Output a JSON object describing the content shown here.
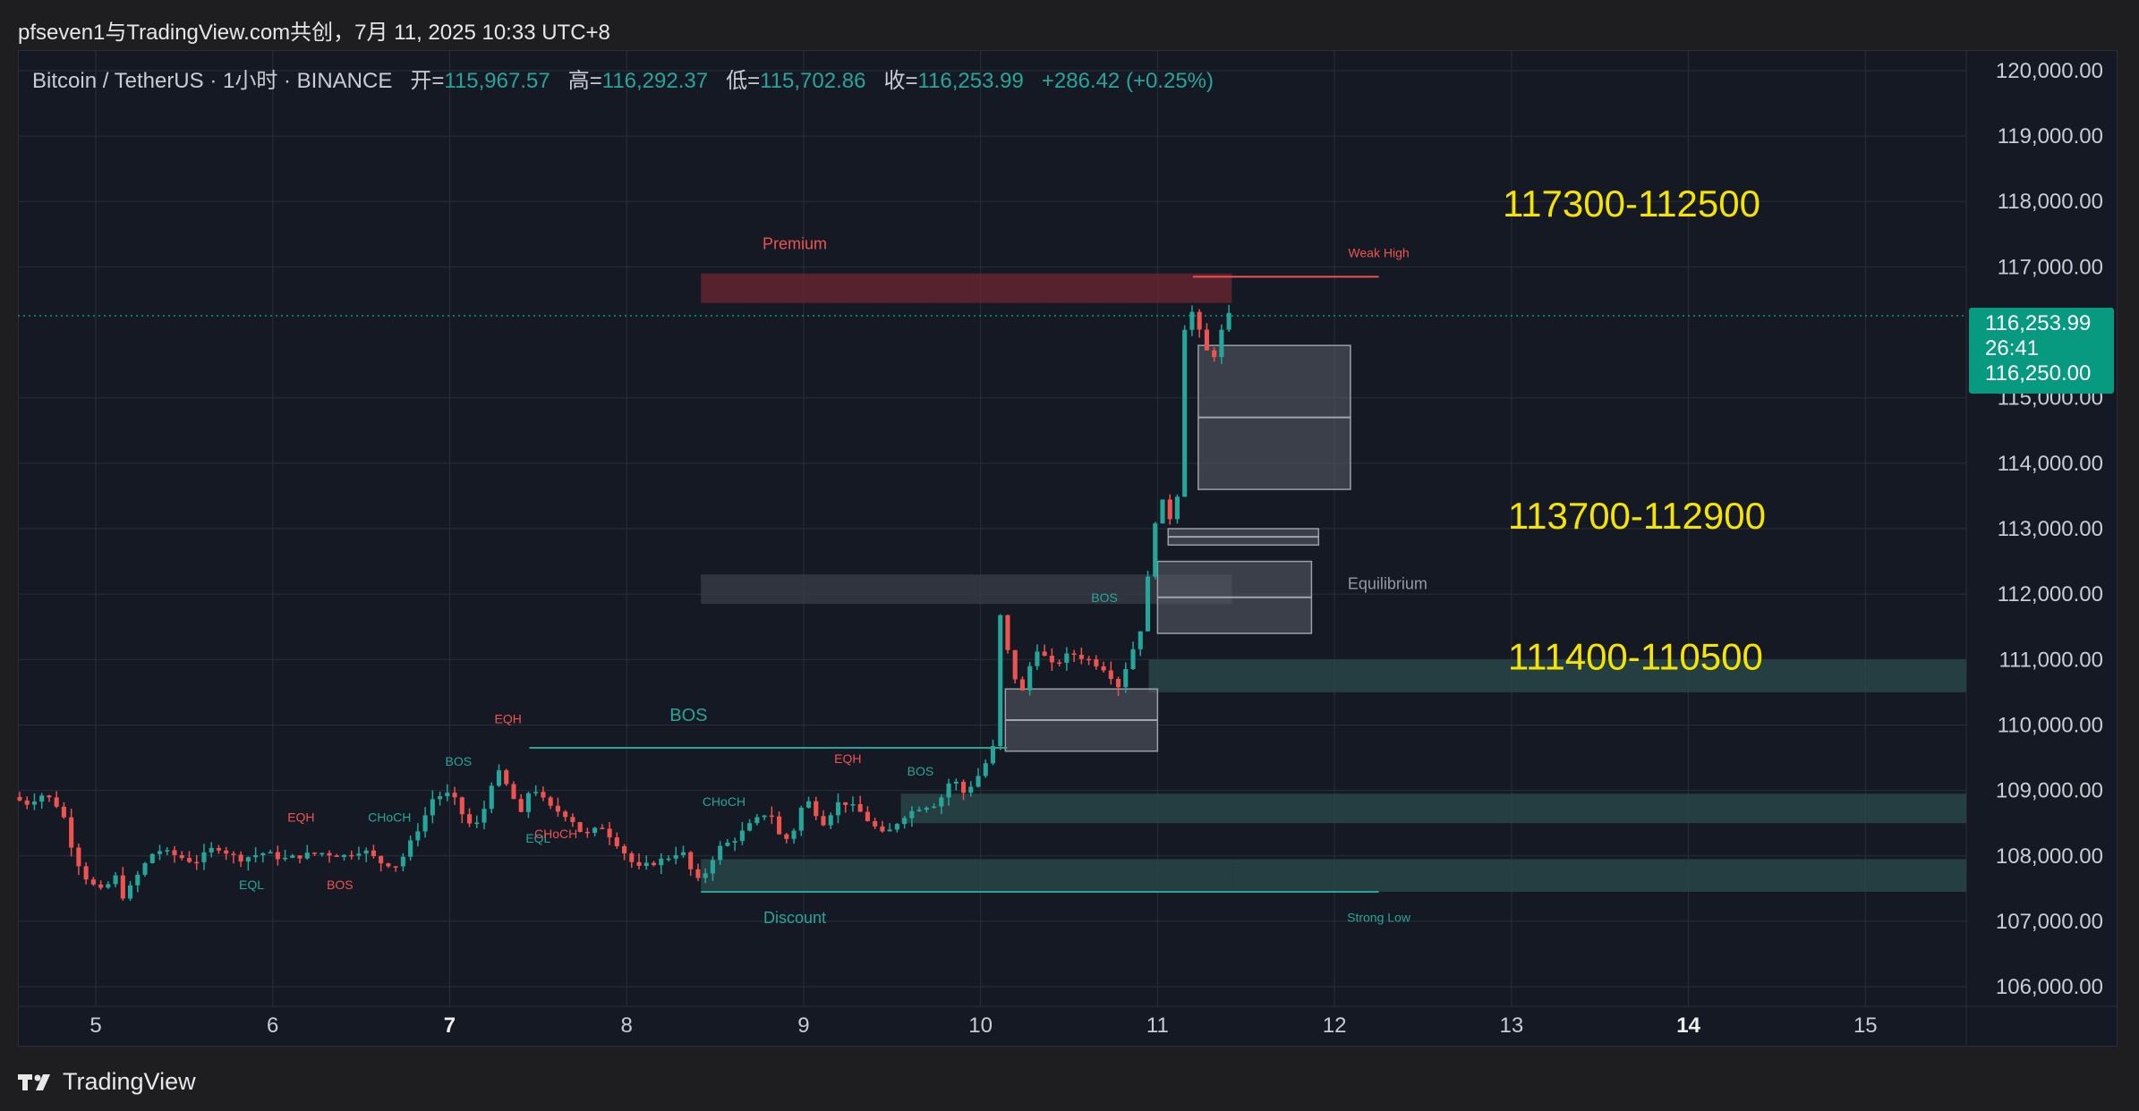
{
  "header": {
    "title": "pfseven1与TradingView.com共创，7月 11, 2025 10:33 UTC+8"
  },
  "legend": {
    "symbol": "Bitcoin / TetherUS · 1小时 · BINANCE",
    "open_label": "开=",
    "open": "115,967.57",
    "high_label": "高=",
    "high": "116,292.37",
    "low_label": "低=",
    "low": "115,702.86",
    "close_label": "收=",
    "close": "116,253.99",
    "change": "+286.42 (+0.25%)"
  },
  "price_tag": {
    "price": "116,253.99",
    "countdown": "26:41",
    "line2": "116,250.00"
  },
  "footer": {
    "brand": "TradingView"
  },
  "colors": {
    "up": "#26a69a",
    "down": "#ef5350",
    "premium_zone": "#6b2530",
    "discount_zone": "#2a4b4b",
    "annotation_yellow": "#f5e300",
    "grid": "#2a2e39"
  },
  "chart_data": {
    "type": "candlestick",
    "symbol": "BTCUSDT",
    "timeframe": "1h",
    "x_axis": {
      "ticks": [
        {
          "day": 5,
          "label": "5",
          "bold": false
        },
        {
          "day": 6,
          "label": "6",
          "bold": false
        },
        {
          "day": 7,
          "label": "7",
          "bold": true
        },
        {
          "day": 8,
          "label": "8",
          "bold": false
        },
        {
          "day": 9,
          "label": "9",
          "bold": false
        },
        {
          "day": 10,
          "label": "10",
          "bold": false
        },
        {
          "day": 11,
          "label": "11",
          "bold": false
        },
        {
          "day": 12,
          "label": "12",
          "bold": false
        },
        {
          "day": 13,
          "label": "13",
          "bold": false
        },
        {
          "day": 14,
          "label": "14",
          "bold": true
        },
        {
          "day": 15,
          "label": "15",
          "bold": false
        }
      ],
      "range": [
        4.56,
        15.57
      ]
    },
    "y_axis": {
      "range": [
        105700,
        120300
      ],
      "ticks": [
        {
          "value": 120000,
          "label": "120,000.00"
        },
        {
          "value": 119000,
          "label": "119,000.00"
        },
        {
          "value": 118000,
          "label": "118,000.00"
        },
        {
          "value": 117000,
          "label": "117,000.00"
        },
        {
          "value": 115000,
          "label": "115,000.00"
        },
        {
          "value": 114000,
          "label": "114,000.00"
        },
        {
          "value": 113000,
          "label": "113,000.00"
        },
        {
          "value": 112000,
          "label": "112,000.00"
        },
        {
          "value": 111000,
          "label": "111,000.00"
        },
        {
          "value": 110000,
          "label": "110,000.00"
        },
        {
          "value": 109000,
          "label": "109,000.00"
        },
        {
          "value": 108000,
          "label": "108,000.00"
        },
        {
          "value": 107000,
          "label": "107,000.00"
        },
        {
          "value": 106000,
          "label": "106,000.00"
        }
      ]
    },
    "current_price": 116253.99,
    "path": [
      [
        4.57,
        108900
      ],
      [
        4.65,
        108800
      ],
      [
        4.75,
        108950
      ],
      [
        4.85,
        108700
      ],
      [
        4.92,
        108000
      ],
      [
        5.0,
        107600
      ],
      [
        5.08,
        107450
      ],
      [
        5.15,
        107700
      ],
      [
        5.2,
        107350
      ],
      [
        5.3,
        107800
      ],
      [
        5.38,
        108100
      ],
      [
        5.5,
        108000
      ],
      [
        5.6,
        107900
      ],
      [
        5.72,
        108150
      ],
      [
        5.85,
        107950
      ],
      [
        6.0,
        108050
      ],
      [
        6.1,
        107950
      ],
      [
        6.2,
        108000
      ],
      [
        6.3,
        108050
      ],
      [
        6.45,
        108000
      ],
      [
        6.55,
        108100
      ],
      [
        6.65,
        107900
      ],
      [
        6.75,
        107850
      ],
      [
        6.82,
        108200
      ],
      [
        6.9,
        108600
      ],
      [
        6.95,
        108900
      ],
      [
        7.05,
        108950
      ],
      [
        7.12,
        108600
      ],
      [
        7.18,
        108400
      ],
      [
        7.25,
        108800
      ],
      [
        7.3,
        109350
      ],
      [
        7.38,
        109000
      ],
      [
        7.45,
        108600
      ],
      [
        7.5,
        109100
      ],
      [
        7.6,
        108750
      ],
      [
        7.72,
        108600
      ],
      [
        7.8,
        108300
      ],
      [
        7.9,
        108450
      ],
      [
        8.0,
        108150
      ],
      [
        8.1,
        107800
      ],
      [
        8.2,
        107900
      ],
      [
        8.3,
        108000
      ],
      [
        8.35,
        108100
      ],
      [
        8.4,
        107800
      ],
      [
        8.45,
        107600
      ],
      [
        8.5,
        107800
      ],
      [
        8.55,
        108100
      ],
      [
        8.65,
        108250
      ],
      [
        8.75,
        108500
      ],
      [
        8.85,
        108700
      ],
      [
        8.92,
        108200
      ],
      [
        8.98,
        108350
      ],
      [
        9.05,
        108900
      ],
      [
        9.15,
        108500
      ],
      [
        9.25,
        108850
      ],
      [
        9.35,
        108700
      ],
      [
        9.42,
        108500
      ],
      [
        9.5,
        108300
      ],
      [
        9.6,
        108600
      ],
      [
        9.7,
        108750
      ],
      [
        9.8,
        108800
      ],
      [
        9.88,
        109200
      ],
      [
        9.95,
        108950
      ],
      [
        10.05,
        109300
      ],
      [
        10.12,
        109700
      ],
      [
        10.15,
        111700
      ],
      [
        10.22,
        110800
      ],
      [
        10.28,
        110500
      ],
      [
        10.35,
        111200
      ],
      [
        10.45,
        110900
      ],
      [
        10.55,
        111100
      ],
      [
        10.65,
        111000
      ],
      [
        10.75,
        110850
      ],
      [
        10.82,
        110600
      ],
      [
        10.88,
        111000
      ],
      [
        10.95,
        111500
      ],
      [
        11.0,
        112500
      ],
      [
        11.05,
        113600
      ],
      [
        11.1,
        113100
      ],
      [
        11.15,
        113400
      ],
      [
        11.18,
        114500
      ],
      [
        11.2,
        116600
      ],
      [
        11.25,
        116200
      ],
      [
        11.3,
        115850
      ],
      [
        11.35,
        115500
      ],
      [
        11.38,
        115900
      ],
      [
        11.42,
        116100
      ],
      [
        11.44,
        116254
      ]
    ],
    "zones": [
      {
        "name": "premium",
        "x0": 8.42,
        "x1": 11.42,
        "y0": 116450,
        "y1": 116900,
        "color": "#6b2530"
      },
      {
        "name": "equilibrium-band",
        "x0": 8.42,
        "x1": 11.42,
        "y0": 111850,
        "y1": 112300,
        "color": "#3a3e48"
      },
      {
        "name": "discount",
        "x0": 8.42,
        "x1": 11.42,
        "y0": 107450,
        "y1": 107950,
        "color": "#2a4b4b"
      },
      {
        "name": "demand-111k",
        "x0": 10.95,
        "x1": 15.57,
        "y0": 110500,
        "y1": 111000,
        "color": "#2a4b4b"
      },
      {
        "name": "demand-109k",
        "x0": 9.55,
        "x1": 15.57,
        "y0": 108500,
        "y1": 108950,
        "color": "#2a4b4b"
      },
      {
        "name": "demand-108k",
        "x0": 11.42,
        "x1": 15.57,
        "y0": 107450,
        "y1": 107950,
        "color": "#2a4b4b"
      },
      {
        "name": "fvg-upper",
        "x0": 11.23,
        "x1": 12.09,
        "y0": 113600,
        "y1": 115800,
        "color": "#5a5e68"
      },
      {
        "name": "fvg-mid",
        "x0": 11.06,
        "x1": 11.91,
        "y0": 112750,
        "y1": 113000,
        "color": "#5a5e68"
      },
      {
        "name": "fvg-lower",
        "x0": 11.0,
        "x1": 11.87,
        "y0": 111400,
        "y1": 112500,
        "color": "#5a5e68"
      },
      {
        "name": "fvg-bottom",
        "x0": 10.14,
        "x1": 11.0,
        "y0": 109600,
        "y1": 110550,
        "color": "#5a5e68"
      }
    ],
    "lines": [
      {
        "name": "weak-high-line",
        "x0": 11.2,
        "x1": 12.25,
        "y": 116850,
        "color": "#ef5350"
      },
      {
        "name": "strong-low-line",
        "x0": 8.42,
        "x1": 12.25,
        "y": 107450,
        "color": "#26a69a"
      },
      {
        "name": "bos-line-main",
        "x0": 7.45,
        "x1": 10.15,
        "y": 109650,
        "color": "#26a69a"
      }
    ],
    "labels": [
      {
        "text": "Premium",
        "x": 8.95,
        "y": 117270,
        "color": "#ef5350",
        "size": 18
      },
      {
        "text": "Discount",
        "x": 8.95,
        "y": 106970,
        "color": "#26a69a",
        "size": 18
      },
      {
        "text": "Equilibrium",
        "x": 12.3,
        "y": 112080,
        "color": "#9598a1",
        "size": 18
      },
      {
        "text": "Weak High",
        "x": 12.25,
        "y": 117150,
        "color": "#ef5350",
        "size": 14
      },
      {
        "text": "Strong Low",
        "x": 12.25,
        "y": 106990,
        "color": "#26a69a",
        "size": 14
      },
      {
        "text": "BOS",
        "x": 8.35,
        "y": 110060,
        "color": "#26a69a",
        "size": 20
      },
      {
        "text": "BOS",
        "x": 10.7,
        "y": 111880,
        "color": "#26a69a",
        "size": 14
      },
      {
        "text": "BOS",
        "x": 7.05,
        "y": 109380,
        "color": "#26a69a",
        "size": 14
      },
      {
        "text": "BOS",
        "x": 9.66,
        "y": 109230,
        "color": "#26a69a",
        "size": 14
      },
      {
        "text": "BOS",
        "x": 6.38,
        "y": 107490,
        "color": "#ef5350",
        "size": 14
      },
      {
        "text": "EQH",
        "x": 7.33,
        "y": 110030,
        "color": "#ef5350",
        "size": 14
      },
      {
        "text": "EQH",
        "x": 6.16,
        "y": 108520,
        "color": "#ef5350",
        "size": 14
      },
      {
        "text": "EQH",
        "x": 9.25,
        "y": 109420,
        "color": "#ef5350",
        "size": 14
      },
      {
        "text": "EQL",
        "x": 5.88,
        "y": 107490,
        "color": "#26a69a",
        "size": 14
      },
      {
        "text": "EQL",
        "x": 7.5,
        "y": 108200,
        "color": "#26a69a",
        "size": 14
      },
      {
        "text": "CHoCH",
        "x": 6.66,
        "y": 108520,
        "color": "#26a69a",
        "size": 14
      },
      {
        "text": "CHoCH",
        "x": 7.6,
        "y": 108270,
        "color": "#ef5350",
        "size": 14
      },
      {
        "text": "CHoCH",
        "x": 8.55,
        "y": 108760,
        "color": "#26a69a",
        "size": 14
      }
    ],
    "annotations": [
      {
        "text": "117300-112500",
        "x": 12.95,
        "y": 117770
      },
      {
        "text": "113700-112900",
        "x": 12.98,
        "y": 113000
      },
      {
        "text": "111400-110500",
        "x": 12.98,
        "y": 110850
      }
    ]
  }
}
